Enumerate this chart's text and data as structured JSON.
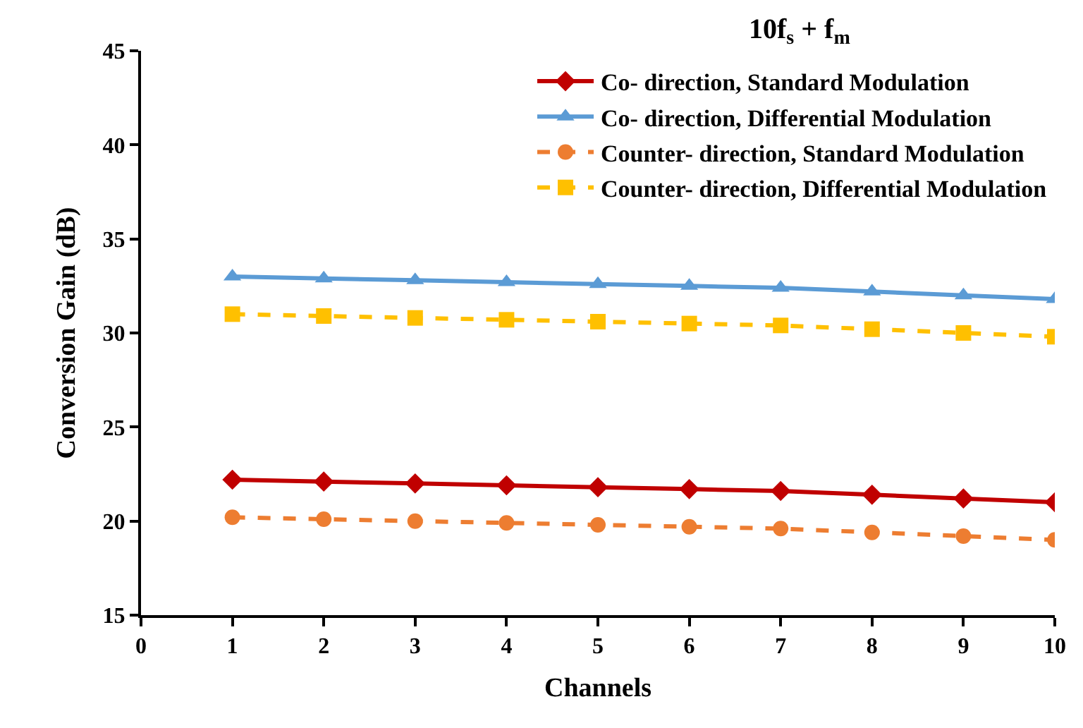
{
  "chart_data": {
    "type": "line",
    "title": "10f$_{s}$ + f$_{m}$",
    "xlabel": "Channels",
    "ylabel": "Conversion Gain (dB)",
    "x": [
      1,
      2,
      3,
      4,
      5,
      6,
      7,
      8,
      9,
      10
    ],
    "series": [
      {
        "name": "Co- direction, Standard Modulation",
        "color": "#c00000",
        "marker": "diamond",
        "line_style": "solid",
        "values": [
          22.2,
          22.1,
          22.0,
          21.9,
          21.8,
          21.7,
          21.6,
          21.4,
          21.2,
          21.0
        ]
      },
      {
        "name": "Co- direction, Differential Modulation",
        "color": "#5b9bd5",
        "marker": "triangle",
        "line_style": "solid",
        "values": [
          33.0,
          32.9,
          32.8,
          32.7,
          32.6,
          32.5,
          32.4,
          32.2,
          32.0,
          31.8
        ]
      },
      {
        "name": "Counter- direction, Standard Modulation",
        "color": "#ed7d31",
        "marker": "circle",
        "line_style": "dashed",
        "values": [
          20.2,
          20.1,
          20.0,
          19.9,
          19.8,
          19.7,
          19.6,
          19.4,
          19.2,
          19.0
        ]
      },
      {
        "name": "Counter- direction, Differential Modulation",
        "color": "#ffc000",
        "marker": "square",
        "line_style": "dashed",
        "values": [
          31.0,
          30.9,
          30.8,
          30.7,
          30.6,
          30.5,
          30.4,
          30.2,
          30.0,
          29.8
        ]
      }
    ],
    "xlim": [
      0,
      10
    ],
    "xticks": [
      0,
      1,
      2,
      3,
      4,
      5,
      6,
      7,
      8,
      9,
      10
    ],
    "ylim": [
      15,
      45
    ],
    "yticks": [
      15,
      20,
      25,
      30,
      35,
      40,
      45
    ],
    "grid": false,
    "legend": "top right"
  }
}
